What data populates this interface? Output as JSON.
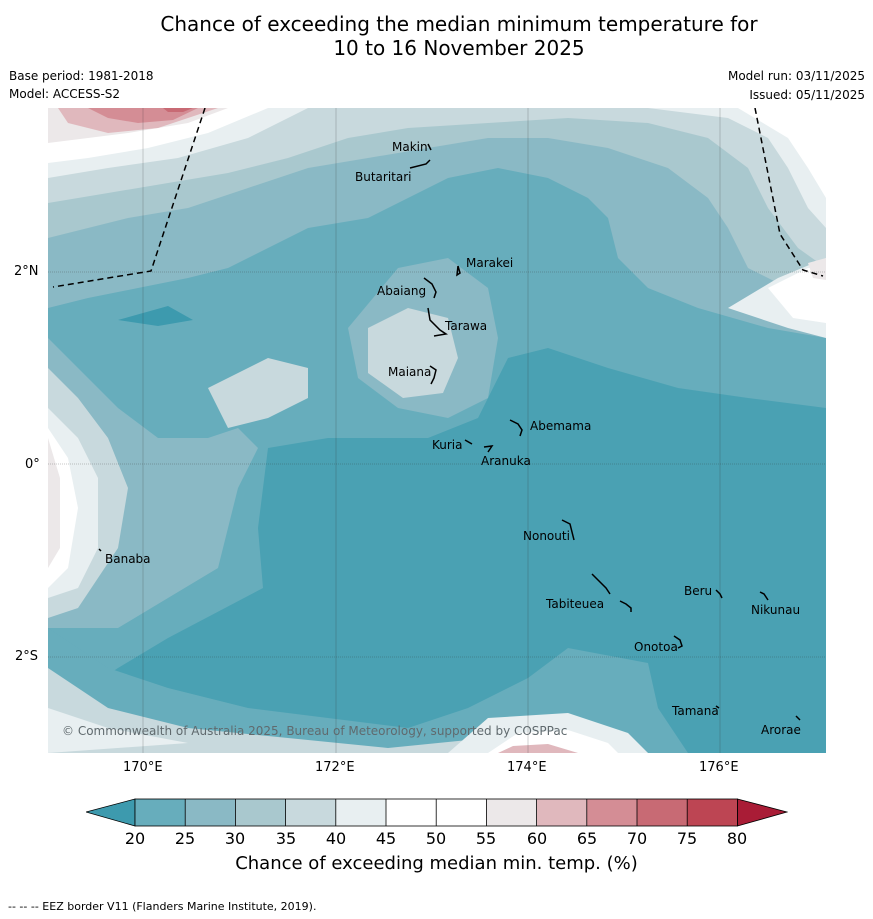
{
  "title": {
    "line1": "Chance of exceeding the median minimum temperature for",
    "line2": "10 to 16 November 2025"
  },
  "meta": {
    "base_period": "Base period: 1981-2018",
    "model": "Model: ACCESS-S2",
    "model_run": "Model run: 03/11/2025",
    "issued": "Issued: 05/11/2025"
  },
  "map": {
    "lat_labels": [
      "2°N",
      "0°",
      "2°S"
    ],
    "lon_labels": [
      "170°E",
      "172°E",
      "174°E",
      "176°E"
    ],
    "places": [
      "Makin",
      "Butaritari",
      "Marakei",
      "Abaiang",
      "Tarawa",
      "Maiana",
      "Abemama",
      "Kuria",
      "Aranuka",
      "Nonouti",
      "Banaba",
      "Beru",
      "Tabiteuea",
      "Nikunau",
      "Onotoa",
      "Tamana",
      "Arorae"
    ],
    "copyright": "© Commonwealth of Australia 2025, Bureau of Meteorology, supported by COSPPac"
  },
  "colorbar": {
    "ticks": [
      "20",
      "25",
      "30",
      "35",
      "40",
      "45",
      "50",
      "55",
      "60",
      "65",
      "70",
      "75",
      "80"
    ],
    "colors": {
      "below_20": "#3d9aae",
      "c20_25": "#67adbc",
      "c25_30": "#8ab9c5",
      "c30_35": "#a9c8ce",
      "c35_40": "#c8d9dd",
      "c40_45": "#e8eff1",
      "c45_50": "#ffffff",
      "c50_55": "#ffffff",
      "c55_60": "#ece8e9",
      "c60_65": "#e0b8bd",
      "c65_70": "#d48d95",
      "c70_75": "#c86a74",
      "c75_80": "#bd4553",
      "above_80": "#a91c36"
    },
    "label": "Chance of exceeding median min. temp. (%)"
  },
  "footnote": "--  --  -- EEZ border V11 (Flanders Marine Institute, 2019)."
}
